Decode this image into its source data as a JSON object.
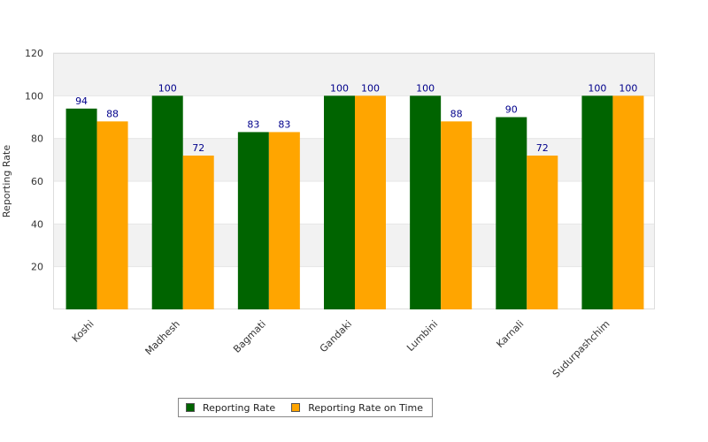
{
  "chart_data": {
    "type": "bar",
    "title": "",
    "xlabel": "",
    "ylabel": "Reporting Rate",
    "ylim": [
      0,
      120
    ],
    "yticks": [
      20,
      40,
      60,
      80,
      100,
      120
    ],
    "grid": "alternating horizontal bands",
    "legend_position": "bottom",
    "categories": [
      "Koshi",
      "Madhesh",
      "Bagmati",
      "Gandaki",
      "Lumbini",
      "Karnali",
      "Sudurpashchim"
    ],
    "series": [
      {
        "name": "Reporting Rate",
        "color": "#006400",
        "values": [
          94,
          100,
          83,
          100,
          100,
          90,
          100
        ]
      },
      {
        "name": "Reporting Rate on Time",
        "color": "#FFA500",
        "values": [
          88,
          72,
          83,
          100,
          88,
          72,
          100
        ]
      }
    ],
    "data_label_color": "#00008B"
  }
}
